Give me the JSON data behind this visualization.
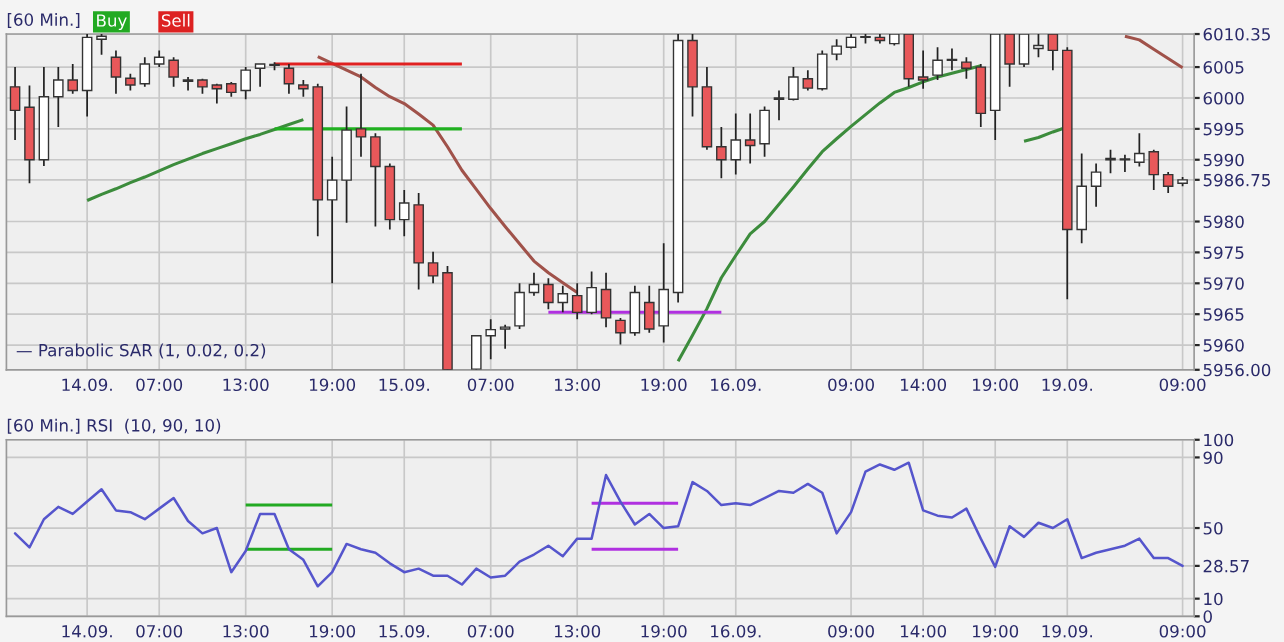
{
  "chart_data": [
    {
      "type": "candlestick",
      "title": "[60 Min.]",
      "annotations": [
        "Buy",
        "Sell",
        "— Parabolic SAR (1, 0.02, 0.2)"
      ],
      "categories": [
        null,
        null,
        null,
        null,
        null,
        "14.09.",
        null,
        null,
        null,
        null,
        "07:00",
        null,
        null,
        null,
        null,
        null,
        "13:00",
        null,
        null,
        null,
        null,
        null,
        "19:00",
        null,
        null,
        null,
        null,
        "15.09.",
        null,
        null,
        null,
        null,
        null,
        "07:00",
        null,
        null,
        null,
        null,
        null,
        "13:00",
        null,
        null,
        null,
        null,
        null,
        "19:00",
        null,
        null,
        null,
        null,
        "16.09.",
        null,
        null,
        null,
        null,
        null,
        null,
        null,
        "09:00",
        null,
        null,
        null,
        null,
        "14:00",
        null,
        null,
        null,
        null,
        "19:00",
        null,
        null,
        null,
        null,
        "19.09.",
        null,
        null,
        null,
        null,
        null,
        null,
        null,
        "09:00"
      ],
      "ohlc": [
        [
          6001.8,
          6005,
          5993.2,
          5998
        ],
        [
          5998.5,
          6002,
          5986.2,
          5990
        ],
        [
          5990,
          6005,
          5989,
          6000.2
        ],
        [
          6000.2,
          6005,
          5995.3,
          6002.9
        ],
        [
          6002.9,
          6005.5,
          6000.7,
          6001.2
        ],
        [
          6001.2,
          6010.35,
          5997,
          6009.8
        ],
        [
          6009.5,
          6010.35,
          6007,
          6010
        ],
        [
          6006.6,
          6007.7,
          6000.7,
          6003.4
        ],
        [
          6003.2,
          6003.9,
          6001.2,
          6002.1
        ],
        [
          6002.3,
          6006.6,
          6001.8,
          6005.5
        ],
        [
          6005.5,
          6007.7,
          6005,
          6006.6
        ],
        [
          6006.1,
          6006.6,
          6001.8,
          6003.4
        ],
        [
          6002.9,
          6003.4,
          6001.2,
          6002.7
        ],
        [
          6002.9,
          6003.1,
          6000.7,
          6001.8
        ],
        [
          6002.1,
          6002.3,
          5999.1,
          6001.5
        ],
        [
          6002.3,
          6002.6,
          6000.2,
          6000.9
        ],
        [
          6001.2,
          6005,
          5999.8,
          6004.5
        ],
        [
          6004.8,
          6005.5,
          6001.8,
          6005.5
        ],
        [
          6005.3,
          6005.8,
          6004.5,
          6005.3
        ],
        [
          6004.8,
          6005.5,
          6000.7,
          6002.3
        ],
        [
          6002.1,
          6002.9,
          6000.2,
          6001.5
        ],
        [
          6001.8,
          6002.3,
          5977.6,
          5983.5
        ],
        [
          5983.5,
          5990.5,
          5970,
          5986.7
        ],
        [
          5986.7,
          5998.6,
          5979.8,
          5994.8
        ],
        [
          5995,
          6003.9,
          5990.5,
          5993.7
        ],
        [
          5993.7,
          5994.3,
          5979.2,
          5988.9
        ],
        [
          5988.9,
          5989.4,
          5978.7,
          5980.3
        ],
        [
          5980.3,
          5985.1,
          5977.6,
          5983
        ],
        [
          5982.7,
          5984.6,
          5969,
          5973.3
        ],
        [
          5973.3,
          5975.1,
          5970,
          5971.2
        ],
        [
          5971.7,
          5972.8,
          5956,
          5956
        ],
        null,
        [
          5956.1,
          5961.5,
          5956,
          5961.5
        ],
        [
          5961.5,
          5964.2,
          5957.7,
          5962.5
        ],
        [
          5962.6,
          5963.3,
          5959.4,
          5962.9
        ],
        [
          5963.1,
          5970,
          5962.6,
          5968.5
        ],
        [
          5968.5,
          5971.7,
          5968,
          5969.8
        ],
        [
          5969.8,
          5970.8,
          5965.8,
          5966.9
        ],
        [
          5966.9,
          5969.6,
          5965.3,
          5968.3
        ],
        [
          5968,
          5970,
          5964.2,
          5965.3
        ],
        [
          5965.3,
          5971.9,
          5965,
          5969.3
        ],
        [
          5969,
          5971.7,
          5962.9,
          5964.4
        ],
        [
          5964,
          5964.4,
          5960.1,
          5962
        ],
        [
          5962,
          5969.6,
          5961.5,
          5968.5
        ],
        [
          5966.9,
          5969.6,
          5962,
          5962.6
        ],
        [
          5963.1,
          5976.5,
          5960.4,
          5969
        ],
        [
          5968.5,
          6010.35,
          5966.9,
          6009.3
        ],
        [
          6009.3,
          6010.35,
          5997,
          6001.8
        ],
        [
          6001.8,
          6005,
          5991.6,
          5992.1
        ],
        [
          5992.1,
          5995.3,
          5987,
          5990
        ],
        [
          5990,
          5997.5,
          5987.6,
          5993.2
        ],
        [
          5993.2,
          5997.5,
          5989.4,
          5992.3
        ],
        [
          5992.6,
          5998.6,
          5990.5,
          5998
        ],
        [
          5999.8,
          6001.2,
          5996.4,
          6000
        ],
        [
          5999.8,
          6005,
          5999.6,
          6003.4
        ],
        [
          6003.1,
          6004.5,
          6001.2,
          6001.6
        ],
        [
          6001.5,
          6007.7,
          6001.2,
          6007.1
        ],
        [
          6007.1,
          6009.5,
          6006.1,
          6008.4
        ],
        [
          6008.2,
          6010.35,
          6008,
          6009.8
        ],
        [
          6009.8,
          6010.35,
          6008.8,
          6009.8
        ],
        [
          6009.8,
          6010.35,
          6008.8,
          6009.3
        ],
        [
          6008.8,
          6010.35,
          6008.5,
          6010.35
        ],
        [
          6010.35,
          6010.35,
          6001.8,
          6003.1
        ],
        [
          6003.4,
          6007.7,
          6001.5,
          6002.9
        ],
        [
          6003.7,
          6008.2,
          6002.9,
          6006.1
        ],
        [
          6006.1,
          6008,
          6004.5,
          6006.1
        ],
        [
          6005.8,
          6006.6,
          6003.1,
          6004.8
        ],
        [
          6005,
          6005.5,
          5995.3,
          5997.5
        ],
        [
          5998,
          6010.35,
          5993.2,
          6010.35
        ],
        [
          6010.35,
          6010.35,
          6001.8,
          6005.5
        ],
        [
          6005.5,
          6010.35,
          6005,
          6010.35
        ],
        [
          6008,
          6010.35,
          6006.6,
          6008.5
        ],
        [
          6010.35,
          6010.35,
          6004.5,
          6007.7
        ],
        [
          6007.7,
          6008.2,
          5967.4,
          5978.7
        ],
        [
          5978.7,
          5991,
          5976.5,
          5985.7
        ],
        [
          5985.7,
          5989.4,
          5982.4,
          5988
        ],
        [
          5990,
          5991.6,
          5987.8,
          5990.2
        ],
        [
          5990,
          5990.8,
          5988,
          5990
        ],
        [
          5989.6,
          5994.3,
          5988.9,
          5991
        ],
        [
          5991.3,
          5991.6,
          5985.1,
          5987.6
        ],
        [
          5987.6,
          5988,
          5984.6,
          5985.7
        ],
        [
          5986.2,
          5987.2,
          5985.7,
          5986.75
        ]
      ],
      "colors": [
        "#e8585a",
        "#e8585a",
        "#ffffff",
        "#ffffff",
        "#e8585a",
        "#ffffff",
        "#ffffff",
        "#e8585a",
        "#e8585a",
        "#ffffff",
        "#ffffff",
        "#e8585a",
        "#e8585a",
        "#e8585a",
        "#e8585a",
        "#e8585a",
        "#ffffff",
        "#ffffff",
        "#ffffff",
        "#e8585a",
        "#e8585a",
        "#e8585a",
        "#ffffff",
        "#ffffff",
        "#e8585a",
        "#e8585a",
        "#e8585a",
        "#ffffff",
        "#e8585a",
        "#e8585a",
        "#e8585a",
        "#ffffff",
        "#ffffff",
        "#ffffff",
        "#ffffff",
        "#ffffff",
        "#ffffff",
        "#e8585a",
        "#ffffff",
        "#e8585a",
        "#ffffff",
        "#e8585a",
        "#e8585a",
        "#ffffff",
        "#e8585a",
        "#ffffff",
        "#ffffff",
        "#e8585a",
        "#e8585a",
        "#e8585a",
        "#ffffff",
        "#e8585a",
        "#ffffff",
        "#ffffff",
        "#ffffff",
        "#e8585a",
        "#ffffff",
        "#ffffff",
        "#ffffff",
        "#ffffff",
        "#e8585a",
        "#ffffff",
        "#e8585a",
        "#e8585a",
        "#ffffff",
        "#ffffff",
        "#e8585a",
        "#e8585a",
        "#ffffff",
        "#e8585a",
        "#ffffff",
        "#ffffff",
        "#e8585a",
        "#e8585a",
        "#ffffff",
        "#ffffff",
        "#ffffff",
        "#ffffff",
        "#ffffff",
        "#e8585a",
        "#e8585a",
        "#ffffff"
      ],
      "series": [
        {
          "type": "line",
          "color": "#3c8c3c",
          "values": [
            null,
            null,
            null,
            null,
            null,
            5983.4,
            5984.4,
            5985.3,
            5986.3,
            5987.2,
            5988.2,
            5989.2,
            5990.1,
            5991,
            5991.8,
            5992.6,
            5993.4,
            5994.1,
            5994.9,
            5995.7,
            5996.5,
            null,
            null,
            null,
            null,
            null,
            null,
            null,
            null,
            null,
            null,
            null,
            null,
            null,
            null,
            null,
            null,
            null,
            null,
            null,
            null,
            null,
            null,
            null,
            null,
            null,
            null,
            null,
            null,
            null,
            null,
            null,
            null,
            null,
            null,
            null,
            null,
            null,
            null,
            null,
            null,
            null,
            null,
            null,
            null,
            null,
            null,
            null,
            null,
            null,
            null,
            null,
            null,
            null,
            null,
            null,
            null,
            null,
            null,
            null,
            null,
            null
          ]
        },
        {
          "type": "line",
          "color": "#a0524a",
          "values": [
            null,
            null,
            null,
            null,
            null,
            null,
            null,
            null,
            null,
            null,
            null,
            null,
            null,
            null,
            null,
            null,
            null,
            null,
            null,
            null,
            null,
            6006.7,
            6005.6,
            6004.5,
            6003.4,
            6001.7,
            6000.2,
            5999.1,
            5997.4,
            5995.6,
            5992.1,
            5988.3,
            5985.2,
            5982.1,
            5979.2,
            5976.4,
            5973.6,
            5971.7,
            5970.1,
            5968.5,
            null,
            null,
            null,
            null,
            null,
            null,
            null,
            null,
            null,
            null,
            null,
            null,
            null,
            null,
            null,
            null,
            null,
            null,
            null,
            null,
            null,
            null,
            null,
            null,
            null,
            null,
            null,
            null,
            null,
            null,
            null,
            null,
            null,
            null,
            null,
            null,
            null,
            null,
            null,
            null,
            null,
            null
          ]
        },
        {
          "type": "line",
          "color": "#3c8c3c",
          "values": [
            null,
            null,
            null,
            null,
            null,
            null,
            null,
            null,
            null,
            null,
            null,
            null,
            null,
            null,
            null,
            null,
            null,
            null,
            null,
            null,
            null,
            null,
            null,
            null,
            null,
            null,
            null,
            null,
            null,
            null,
            null,
            null,
            null,
            null,
            null,
            null,
            null,
            null,
            null,
            null,
            null,
            null,
            null,
            null,
            null,
            null,
            5957.4,
            5961.6,
            5965.9,
            5970.9,
            5974.5,
            5978,
            5980,
            5982.8,
            5985.6,
            5988.5,
            5991.3,
            5993.4,
            5995.4,
            5997.3,
            5999.2,
            6000.9,
            6001.7,
            6002.6,
            6003.4,
            6004,
            6004.6,
            6005.2,
            null,
            null,
            null,
            null,
            null,
            null,
            null,
            null,
            null,
            null,
            null,
            null,
            null,
            null
          ]
        },
        {
          "type": "line",
          "color": "#3c8c3c",
          "values": [
            null,
            null,
            null,
            null,
            null,
            null,
            null,
            null,
            null,
            null,
            null,
            null,
            null,
            null,
            null,
            null,
            null,
            null,
            null,
            null,
            null,
            null,
            null,
            null,
            null,
            null,
            null,
            null,
            null,
            null,
            null,
            null,
            null,
            null,
            null,
            null,
            null,
            null,
            null,
            null,
            null,
            null,
            null,
            null,
            null,
            null,
            null,
            null,
            null,
            null,
            null,
            null,
            null,
            null,
            null,
            null,
            null,
            null,
            null,
            null,
            null,
            null,
            null,
            null,
            null,
            null,
            null,
            null,
            null,
            null,
            5993,
            5993.6,
            5994.5,
            5995.3,
            null,
            null,
            null,
            null,
            null,
            null,
            null,
            null
          ]
        },
        {
          "type": "line",
          "color": "#a0524a",
          "values": [
            null,
            null,
            null,
            null,
            null,
            null,
            null,
            null,
            null,
            null,
            null,
            null,
            null,
            null,
            null,
            null,
            null,
            null,
            null,
            null,
            null,
            null,
            null,
            null,
            null,
            null,
            null,
            null,
            null,
            null,
            null,
            null,
            null,
            null,
            null,
            null,
            null,
            null,
            null,
            null,
            null,
            null,
            null,
            null,
            null,
            null,
            null,
            null,
            null,
            null,
            null,
            null,
            null,
            null,
            null,
            null,
            null,
            null,
            null,
            null,
            null,
            null,
            null,
            null,
            null,
            null,
            null,
            null,
            null,
            null,
            null,
            null,
            null,
            null,
            null,
            null,
            null,
            6010,
            6009.4,
            6007.9,
            6006.4,
            6004.9
          ]
        },
        {
          "type": "line",
          "color": "#e02020",
          "values": [
            null,
            null,
            null,
            null,
            null,
            null,
            null,
            null,
            null,
            null,
            null,
            null,
            null,
            null,
            null,
            null,
            null,
            null,
            6005.5,
            6005.5,
            6005.5,
            6005.5,
            6005.5,
            6005.5,
            6005.5,
            6005.5,
            6005.5,
            6005.5,
            6005.5,
            6005.5,
            6005.5,
            6005.5,
            null,
            null,
            null,
            null,
            null,
            null,
            null,
            null,
            null,
            null,
            null,
            null,
            null,
            null,
            null,
            null,
            null,
            null,
            null,
            null,
            null,
            null,
            null,
            null,
            null,
            null,
            null,
            null,
            null,
            null,
            null,
            null,
            null,
            null,
            null,
            null,
            null,
            null,
            null,
            null,
            null,
            null,
            null,
            null,
            null,
            null,
            null,
            null,
            null,
            null
          ]
        },
        {
          "type": "line",
          "color": "#20b020",
          "values": [
            null,
            null,
            null,
            null,
            null,
            null,
            null,
            null,
            null,
            null,
            null,
            null,
            null,
            null,
            null,
            null,
            null,
            null,
            5995,
            5995,
            5995,
            5995,
            5995,
            5995,
            5995,
            5995,
            5995,
            5995,
            5995,
            5995,
            5995,
            5995,
            null,
            null,
            null,
            null,
            null,
            null,
            null,
            null,
            null,
            null,
            null,
            null,
            null,
            null,
            null,
            null,
            null,
            null,
            null,
            null,
            null,
            null,
            null,
            null,
            null,
            null,
            null,
            null,
            null,
            null,
            null,
            null,
            null,
            null,
            null,
            null,
            null,
            null,
            null,
            null,
            null,
            null,
            null,
            null,
            null,
            null,
            null,
            null,
            null,
            null
          ]
        },
        {
          "type": "line",
          "color": "#b030e0",
          "values": [
            null,
            null,
            null,
            null,
            null,
            null,
            null,
            null,
            null,
            null,
            null,
            null,
            null,
            null,
            null,
            null,
            null,
            null,
            null,
            null,
            null,
            null,
            null,
            null,
            null,
            null,
            null,
            null,
            null,
            null,
            null,
            null,
            null,
            null,
            null,
            null,
            null,
            5965.3,
            5965.3,
            5965.3,
            5965.3,
            5965.3,
            5965.3,
            5965.3,
            5965.3,
            5965.3,
            5965.3,
            5965.3,
            5965.3,
            5965.3,
            null,
            null,
            null,
            null,
            null,
            null,
            null,
            null,
            null,
            null,
            null,
            null,
            null,
            null,
            null,
            null,
            null,
            null,
            null,
            null,
            null,
            null,
            null,
            null,
            null,
            null,
            null,
            null,
            null,
            null,
            null,
            null
          ]
        }
      ],
      "ylim": [
        5956,
        6010.35
      ],
      "yticks": [
        {
          "value": 5956,
          "label": "5956.00"
        },
        5960,
        5965,
        5970,
        5975,
        5980,
        5986.75,
        5990,
        5995,
        6000,
        6005,
        6010.35
      ],
      "grid": true
    },
    {
      "type": "line",
      "title": "[60 Min.] RSI  (10, 90, 10)",
      "color": "#5555cc",
      "categories": [
        null,
        null,
        null,
        null,
        null,
        "14.09.",
        null,
        null,
        null,
        null,
        "07:00",
        null,
        null,
        null,
        null,
        null,
        "13:00",
        null,
        null,
        null,
        null,
        null,
        "19:00",
        null,
        null,
        null,
        null,
        "15.09.",
        null,
        null,
        null,
        null,
        null,
        "07:00",
        null,
        null,
        null,
        null,
        null,
        "13:00",
        null,
        null,
        null,
        null,
        null,
        "19:00",
        null,
        null,
        null,
        null,
        "16.09.",
        null,
        null,
        null,
        null,
        null,
        null,
        null,
        "09:00",
        null,
        null,
        null,
        null,
        "14:00",
        null,
        null,
        null,
        null,
        "19:00",
        null,
        null,
        null,
        null,
        "19.09.",
        null,
        null,
        null,
        null,
        null,
        null,
        null,
        "09:00"
      ],
      "values": [
        47,
        39,
        55,
        62,
        58,
        65,
        72,
        60,
        59,
        55,
        61,
        67,
        54,
        47,
        50,
        25,
        37,
        58,
        58,
        38,
        32,
        17,
        25,
        41,
        38,
        36,
        30,
        25,
        27,
        23,
        23,
        18,
        27,
        22,
        23,
        31,
        35,
        40,
        34,
        44,
        44,
        80,
        65,
        52,
        58,
        50,
        51,
        76,
        71,
        63,
        64,
        63,
        67,
        71,
        70,
        75,
        70,
        47,
        59,
        82,
        86,
        83,
        87,
        60,
        57,
        56,
        61,
        44,
        28,
        51,
        45,
        53,
        50,
        55,
        33,
        36,
        38,
        40,
        44,
        33,
        33,
        28.57
      ],
      "series": [
        {
          "type": "line",
          "color": "#22aa22",
          "values": [
            null,
            null,
            null,
            null,
            null,
            null,
            null,
            null,
            null,
            null,
            null,
            null,
            null,
            null,
            null,
            null,
            63,
            63,
            63,
            63,
            63,
            63,
            63,
            null,
            null,
            null,
            null,
            null,
            null,
            null,
            null,
            null,
            null,
            null,
            null,
            null,
            null,
            null,
            null,
            null,
            null,
            null,
            null,
            null,
            null,
            null,
            null,
            null,
            null,
            null,
            null,
            null,
            null,
            null,
            null,
            null,
            null,
            null,
            null,
            null,
            null,
            null,
            null,
            null,
            null,
            null,
            null,
            null,
            null,
            null,
            null,
            null,
            null,
            null,
            null,
            null,
            null,
            null,
            null,
            null,
            null,
            null
          ]
        },
        {
          "type": "line",
          "color": "#22aa22",
          "values": [
            null,
            null,
            null,
            null,
            null,
            null,
            null,
            null,
            null,
            null,
            null,
            null,
            null,
            null,
            null,
            null,
            38,
            38,
            38,
            38,
            38,
            38,
            38,
            null,
            null,
            null,
            null,
            null,
            null,
            null,
            null,
            null,
            null,
            null,
            null,
            null,
            null,
            null,
            null,
            null,
            null,
            null,
            null,
            null,
            null,
            null,
            null,
            null,
            null,
            null,
            null,
            null,
            null,
            null,
            null,
            null,
            null,
            null,
            null,
            null,
            null,
            null,
            null,
            null,
            null,
            null,
            null,
            null,
            null,
            null,
            null,
            null,
            null,
            null,
            null,
            null,
            null,
            null,
            null,
            null,
            null,
            null
          ]
        },
        {
          "type": "line",
          "color": "#b030e0",
          "values": [
            null,
            null,
            null,
            null,
            null,
            null,
            null,
            null,
            null,
            null,
            null,
            null,
            null,
            null,
            null,
            null,
            null,
            null,
            null,
            null,
            null,
            null,
            null,
            null,
            null,
            null,
            null,
            null,
            null,
            null,
            null,
            null,
            null,
            null,
            null,
            null,
            null,
            null,
            null,
            null,
            64,
            64,
            64,
            64,
            64,
            64,
            64,
            null,
            null,
            null,
            null,
            null,
            null,
            null,
            null,
            null,
            null,
            null,
            null,
            null,
            null,
            null,
            null,
            null,
            null,
            null,
            null,
            null,
            null,
            null,
            null,
            null,
            null,
            null,
            null,
            null,
            null,
            null,
            null,
            null,
            null,
            null
          ]
        },
        {
          "type": "line",
          "color": "#b030e0",
          "values": [
            null,
            null,
            null,
            null,
            null,
            null,
            null,
            null,
            null,
            null,
            null,
            null,
            null,
            null,
            null,
            null,
            null,
            null,
            null,
            null,
            null,
            null,
            null,
            null,
            null,
            null,
            null,
            null,
            null,
            null,
            null,
            null,
            null,
            null,
            null,
            null,
            null,
            null,
            null,
            null,
            38,
            38,
            38,
            38,
            38,
            38,
            38,
            null,
            null,
            null,
            null,
            null,
            null,
            null,
            null,
            null,
            null,
            null,
            null,
            null,
            null,
            null,
            null,
            null,
            null,
            null,
            null,
            null,
            null,
            null,
            null,
            null,
            null,
            null,
            null,
            null,
            null,
            null,
            null,
            null,
            null,
            null
          ]
        }
      ],
      "ylim": [
        0,
        100
      ],
      "yticks": [
        0,
        10,
        {
          "value": 28.57,
          "label": "28.57"
        },
        50,
        90,
        100
      ],
      "grid": true
    }
  ]
}
